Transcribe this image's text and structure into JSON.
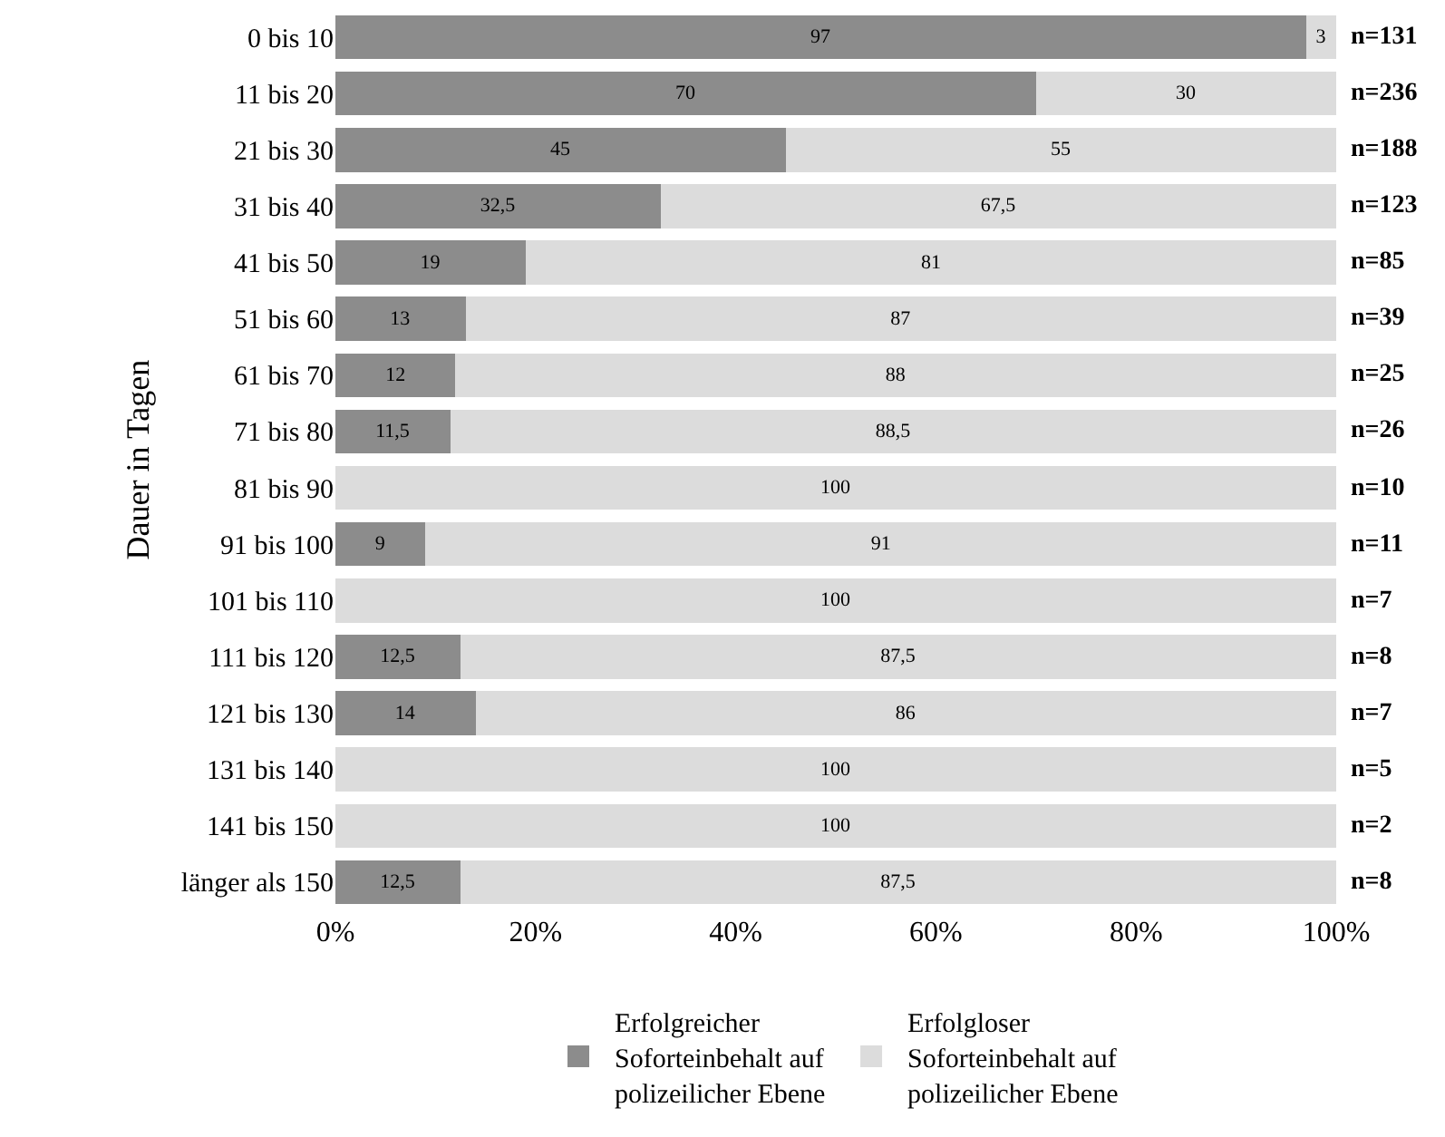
{
  "chart_data": {
    "type": "bar",
    "orientation": "horizontal",
    "stacked": true,
    "ylabel": "Dauer in Tagen",
    "categories": [
      "0 bis 10",
      "11 bis 20",
      "21 bis 30",
      "31 bis 40",
      "41 bis 50",
      "51 bis 60",
      "61 bis 70",
      "71 bis 80",
      "81 bis 90",
      "91 bis 100",
      "101 bis 110",
      "111 bis 120",
      "121 bis 130",
      "131 bis 140",
      "141 bis 150",
      "länger als 150"
    ],
    "series": [
      {
        "name": "Erfolgreicher Soforteinbehalt auf polizeilicher Ebene",
        "color": "#8c8c8c",
        "values": [
          97,
          70,
          45,
          32.5,
          19,
          13,
          12,
          11.5,
          0,
          9,
          0,
          12.5,
          14,
          0,
          0,
          12.5
        ],
        "value_labels": [
          "97",
          "70",
          "45",
          "32,5",
          "19",
          "13",
          "12",
          "11,5",
          null,
          "9",
          null,
          "12,5",
          "14",
          null,
          null,
          "12,5"
        ]
      },
      {
        "name": "Erfolgloser Soforteinbehalt auf polizeilicher Ebene",
        "color": "#dcdcdc",
        "values": [
          3,
          30,
          55,
          67.5,
          81,
          87,
          88,
          88.5,
          100,
          91,
          100,
          87.5,
          86,
          100,
          100,
          87.5
        ],
        "value_labels": [
          "3",
          "30",
          "55",
          "67,5",
          "81",
          "87",
          "88",
          "88,5",
          "100",
          "91",
          "100",
          "87,5",
          "86",
          "100",
          "100",
          "87,5"
        ]
      }
    ],
    "xlim": [
      0,
      100
    ],
    "xticks": [
      {
        "value": 0,
        "label": "0%"
      },
      {
        "value": 20,
        "label": "20%"
      },
      {
        "value": 40,
        "label": "40%"
      },
      {
        "value": 60,
        "label": "60%"
      },
      {
        "value": 80,
        "label": "80%"
      },
      {
        "value": 100,
        "label": "100%"
      }
    ],
    "annotations": [
      "n=131",
      "n=236",
      "n=188",
      "n=123",
      "n=85",
      "n=39",
      "n=25",
      "n=26",
      "n=10",
      "n=11",
      "n=7",
      "n=8",
      "n=7",
      "n=5",
      "n=2",
      "n=8"
    ],
    "grid": false,
    "legend": "bottom"
  }
}
